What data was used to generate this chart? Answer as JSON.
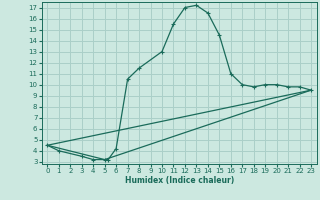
{
  "title": "",
  "xlabel": "Humidex (Indice chaleur)",
  "bg_color": "#cce8e0",
  "grid_color": "#aacfc8",
  "line_color": "#1a6b5a",
  "xlim": [
    -0.5,
    23.5
  ],
  "ylim": [
    2.8,
    17.5
  ],
  "xticks": [
    0,
    1,
    2,
    3,
    4,
    5,
    6,
    7,
    8,
    9,
    10,
    11,
    12,
    13,
    14,
    15,
    16,
    17,
    18,
    19,
    20,
    21,
    22,
    23
  ],
  "yticks": [
    3,
    4,
    5,
    6,
    7,
    8,
    9,
    10,
    11,
    12,
    13,
    14,
    15,
    16,
    17
  ],
  "curve1_x": [
    0,
    1,
    3,
    4,
    5,
    5.3,
    6,
    7,
    8,
    10,
    11,
    12,
    13,
    14,
    15,
    16,
    17,
    18,
    19,
    20,
    21,
    22,
    23
  ],
  "curve1_y": [
    4.5,
    4.0,
    3.5,
    3.2,
    3.2,
    3.2,
    4.2,
    10.5,
    11.5,
    13.0,
    15.5,
    17.0,
    17.2,
    16.5,
    14.5,
    11.0,
    10.0,
    9.8,
    10.0,
    10.0,
    9.8,
    9.8,
    9.5
  ],
  "curve2_x": [
    0,
    23
  ],
  "curve2_y": [
    4.5,
    9.5
  ],
  "curve3_x": [
    0,
    5,
    23
  ],
  "curve3_y": [
    4.5,
    3.2,
    9.5
  ]
}
